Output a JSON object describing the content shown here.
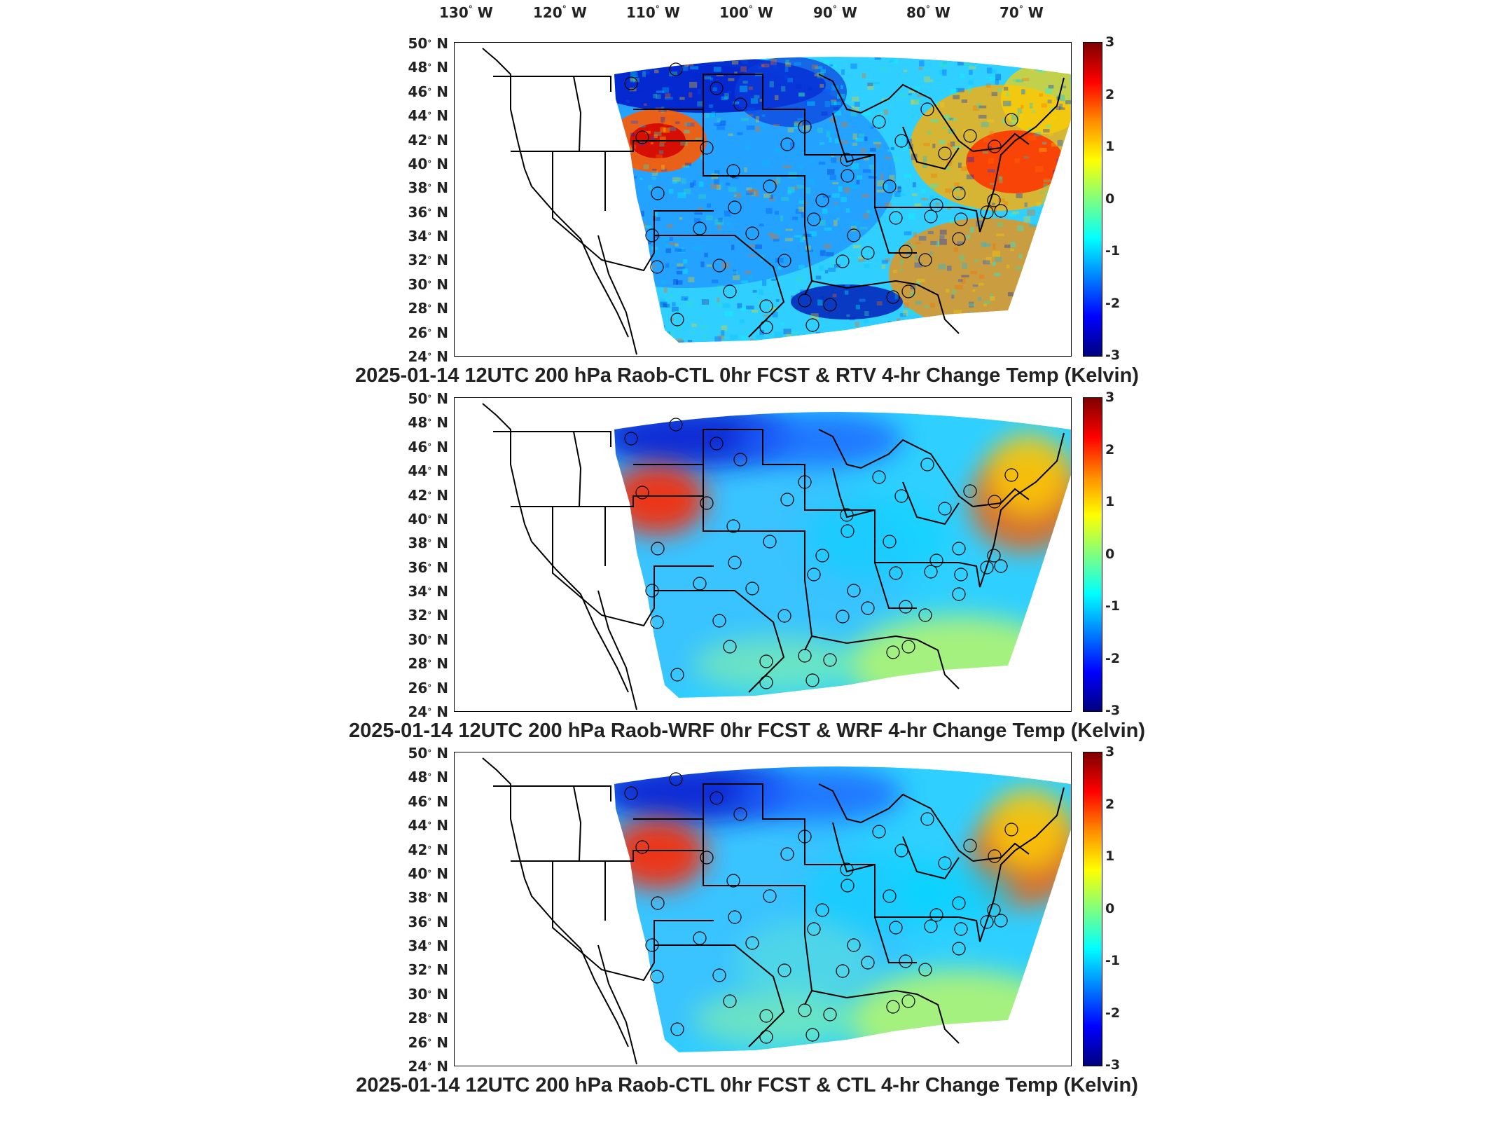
{
  "lon_labels": [
    "130",
    "120",
    "110",
    "100",
    "90",
    "80",
    "70"
  ],
  "lon_suffix": "W",
  "lat_labels": [
    "50",
    "48",
    "46",
    "44",
    "42",
    "40",
    "38",
    "36",
    "34",
    "32",
    "30",
    "28",
    "26",
    "24"
  ],
  "lat_suffix": "N",
  "colorbar": {
    "ticks": [
      "3",
      "2",
      "1",
      "0",
      "-1",
      "-2",
      "-3"
    ],
    "colormap": [
      "#7f0000",
      "#ff0000",
      "#ff8c00",
      "#ffff00",
      "#7fff7f",
      "#00ffff",
      "#0080ff",
      "#0000ff",
      "#00007f"
    ]
  },
  "panels": [
    {
      "title": "2025-01-14 12UTC 200 hPa Raob-CTL 0hr FCST & RTV 4-hr Change Temp (Kelvin)",
      "style": "rtv"
    },
    {
      "title": "2025-01-14 12UTC 200 hPa Raob-WRF 0hr FCST & WRF 4-hr Change Temp (Kelvin)",
      "style": "wrf"
    },
    {
      "title": "2025-01-14 12UTC 200 hPa Raob-CTL 0hr FCST & CTL 4-hr Change Temp (Kelvin)",
      "style": "ctl"
    }
  ],
  "colors": {
    "coast": "#000000",
    "domain_base": "#2fd0ff"
  }
}
